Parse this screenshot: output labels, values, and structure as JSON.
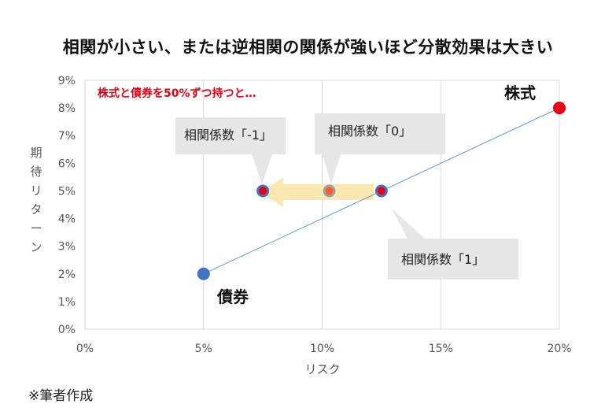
{
  "title": "相関が小さい、または逆相関の関係が強いほど分散効果は大きい",
  "footnote": "※筆者作成",
  "chart_data": {
    "type": "scatter",
    "xlabel": "リスク",
    "ylabel": "期待リターン",
    "xlim": [
      0,
      20
    ],
    "ylim": [
      0,
      9
    ],
    "x_ticks": [
      "0%",
      "5%",
      "10%",
      "15%",
      "20%"
    ],
    "y_ticks": [
      "0%",
      "1%",
      "2%",
      "3%",
      "4%",
      "5%",
      "6%",
      "7%",
      "8%",
      "9%"
    ],
    "grid": "vertical",
    "line": {
      "x": [
        5,
        20
      ],
      "y": [
        2,
        8
      ],
      "color": "#5b9bd5"
    },
    "points": [
      {
        "label": "債券",
        "x": 5,
        "y": 2,
        "color": "#4472c4"
      },
      {
        "label": "株式",
        "x": 20,
        "y": 8,
        "color": "#e60012"
      },
      {
        "label": "相関係数「1」",
        "x": 12.5,
        "y": 5,
        "color": "#4472c4",
        "inner": "#e60012"
      },
      {
        "label": "相関係数「0」",
        "x": 10.3,
        "y": 5,
        "color": "#8fa3c0",
        "inner": "#ff5a1f"
      },
      {
        "label": "相関係数「-1」",
        "x": 7.5,
        "y": 5,
        "color": "#4472c4",
        "inner": "#e60012"
      }
    ],
    "annotation": "株式と債券を50%ずつ持つと…",
    "arrow_color": "#fbe7b0",
    "callout_color": "#e6e6e6"
  }
}
